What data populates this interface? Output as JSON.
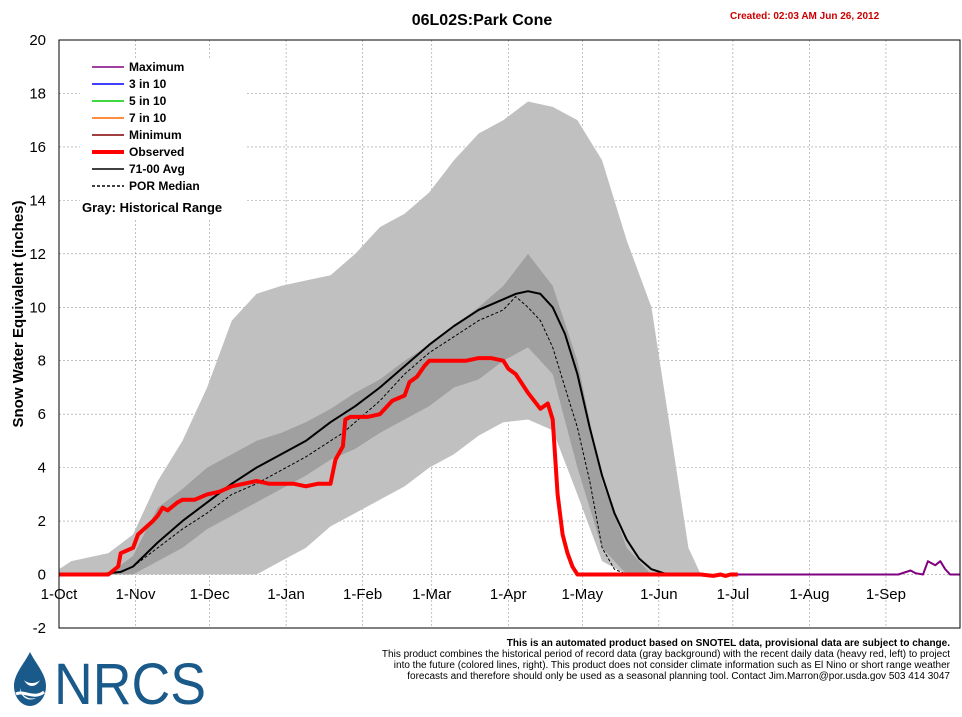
{
  "header": {
    "title": "06L02S:Park Cone",
    "created": "Created: 02:03 AM Jun 26, 2012"
  },
  "legend": {
    "entries": [
      {
        "label": "Maximum",
        "color": "#800080",
        "style": "solid"
      },
      {
        "label": "3 in 10",
        "color": "#0000ff",
        "style": "solid"
      },
      {
        "label": "5 in 10",
        "color": "#00cc00",
        "style": "solid"
      },
      {
        "label": "7 in 10",
        "color": "#ff6600",
        "style": "solid"
      },
      {
        "label": "Minimum",
        "color": "#800000",
        "style": "solid"
      },
      {
        "label": "Observed",
        "color": "#ff0000",
        "style": "thick"
      },
      {
        "label": "71-00 Avg",
        "color": "#000000",
        "style": "solid"
      },
      {
        "label": "POR Median",
        "color": "#000000",
        "style": "dashed"
      }
    ],
    "note": "Gray: Historical Range"
  },
  "footer": {
    "line1": "This is an automated product based on SNOTEL data, provisional data are subject to change.",
    "line2": "This product combines the historical period of record data (gray background) with the recent daily data (heavy red, left) to project",
    "line3": "into the future (colored lines, right). This product does not consider climate information such as El Nino or short range weather",
    "line4": "forecasts and therefore should only be used as a seasonal planning tool. Contact Jim.Marron@por.usda.gov 503 414 3047"
  },
  "logo": {
    "text": "NRCS",
    "color": "#1a5a8a"
  },
  "colors": {
    "outer_range": "#c0c0c0",
    "mid_range": "#a0a0a0",
    "inner_range": "#808080",
    "observed": "#ff0000",
    "average": "#000000",
    "maximum": "#800080"
  },
  "chart_data": {
    "type": "area",
    "xlabel": "",
    "ylabel": "Snow Water Equivalent (inches)",
    "ylim": [
      -2,
      20
    ],
    "yticks": [
      -2,
      0,
      2,
      4,
      6,
      8,
      10,
      12,
      14,
      16,
      18,
      20
    ],
    "xlim": [
      0,
      365
    ],
    "xticks": [
      {
        "label": "1-Oct",
        "day": 0
      },
      {
        "label": "1-Nov",
        "day": 31
      },
      {
        "label": "1-Dec",
        "day": 61
      },
      {
        "label": "1-Jan",
        "day": 92
      },
      {
        "label": "1-Feb",
        "day": 123
      },
      {
        "label": "1-Mar",
        "day": 151
      },
      {
        "label": "1-Apr",
        "day": 182
      },
      {
        "label": "1-May",
        "day": 212
      },
      {
        "label": "1-Jun",
        "day": 243
      },
      {
        "label": "1-Jul",
        "day": 273
      },
      {
        "label": "1-Aug",
        "day": 304
      },
      {
        "label": "1-Sep",
        "day": 335
      }
    ],
    "grid": true,
    "legend_position": "top-left",
    "historical_range_outer": {
      "day": [
        0,
        5,
        10,
        20,
        30,
        40,
        50,
        60,
        70,
        80,
        90,
        100,
        110,
        120,
        130,
        140,
        150,
        160,
        170,
        180,
        190,
        200,
        210,
        220,
        230,
        240,
        250,
        255,
        260,
        365
      ],
      "upper": [
        0.2,
        0.5,
        0.6,
        0.8,
        1.5,
        3.5,
        5.0,
        7.0,
        9.5,
        10.5,
        10.8,
        11.0,
        11.2,
        12.0,
        13.0,
        13.5,
        14.3,
        15.5,
        16.5,
        17.0,
        17.7,
        17.5,
        17.0,
        15.5,
        12.5,
        10.0,
        4.0,
        1.0,
        0,
        0
      ],
      "lower": [
        0,
        0,
        0,
        0,
        0,
        0,
        0,
        0,
        0,
        0,
        0.5,
        1.0,
        1.8,
        2.3,
        2.8,
        3.3,
        4.0,
        4.5,
        5.2,
        5.7,
        5.8,
        5.4,
        3.0,
        0.5,
        0,
        0,
        0,
        0,
        0,
        0
      ]
    },
    "historical_range_mid": {
      "day": [
        20,
        30,
        40,
        50,
        60,
        70,
        80,
        90,
        100,
        110,
        120,
        130,
        140,
        150,
        160,
        170,
        180,
        190,
        200,
        210,
        220,
        230,
        240
      ],
      "upper": [
        0,
        0.7,
        2.5,
        3.2,
        4.0,
        4.5,
        5.0,
        5.3,
        5.7,
        6.2,
        6.8,
        7.3,
        8.0,
        8.6,
        9.3,
        10.0,
        10.8,
        12.0,
        10.8,
        8.0,
        3.5,
        1.0,
        0
      ],
      "lower": [
        0,
        0,
        0.5,
        1.0,
        1.7,
        2.2,
        2.7,
        3.2,
        3.7,
        4.3,
        4.7,
        5.3,
        5.8,
        6.3,
        7.0,
        7.3,
        8.0,
        8.5,
        7.5,
        4.0,
        1.0,
        0,
        0
      ]
    },
    "series": [
      {
        "name": "Observed",
        "day": [
          0,
          12,
          20,
          24,
          25,
          30,
          32,
          38,
          40,
          42,
          44,
          48,
          50,
          55,
          60,
          65,
          70,
          75,
          80,
          85,
          90,
          95,
          100,
          105,
          110,
          112,
          115,
          116,
          118,
          120,
          125,
          130,
          135,
          140,
          142,
          145,
          148,
          150,
          155,
          160,
          165,
          170,
          175,
          180,
          182,
          185,
          190,
          195,
          198,
          200,
          202,
          204,
          206,
          208,
          210,
          212,
          215,
          260,
          265,
          268,
          270,
          272,
          275
        ],
        "value": [
          0,
          0,
          0,
          0.3,
          0.8,
          1.0,
          1.5,
          2.0,
          2.2,
          2.5,
          2.4,
          2.7,
          2.8,
          2.8,
          3.0,
          3.1,
          3.3,
          3.4,
          3.5,
          3.4,
          3.4,
          3.4,
          3.3,
          3.4,
          3.4,
          4.3,
          4.8,
          5.8,
          5.9,
          5.9,
          5.9,
          6.0,
          6.5,
          6.7,
          7.2,
          7.4,
          7.8,
          8.0,
          8.0,
          8.0,
          8.0,
          8.1,
          8.1,
          8.0,
          7.7,
          7.5,
          6.8,
          6.2,
          6.4,
          5.8,
          3.0,
          1.5,
          0.8,
          0.3,
          0,
          0,
          0,
          0,
          -0.05,
          0,
          -0.05,
          0,
          0
        ]
      },
      {
        "name": "71-00 Avg",
        "day": [
          0,
          15,
          20,
          25,
          30,
          40,
          50,
          60,
          70,
          80,
          90,
          100,
          110,
          120,
          130,
          140,
          150,
          160,
          170,
          180,
          185,
          190,
          195,
          200,
          205,
          210,
          215,
          220,
          225,
          230,
          235,
          240,
          245,
          250
        ],
        "value": [
          0,
          0,
          0.05,
          0.1,
          0.3,
          1.2,
          2.0,
          2.7,
          3.4,
          4.0,
          4.5,
          5.0,
          5.7,
          6.3,
          7.0,
          7.8,
          8.6,
          9.3,
          9.9,
          10.3,
          10.5,
          10.6,
          10.5,
          10.0,
          9.0,
          7.5,
          5.5,
          3.7,
          2.3,
          1.3,
          0.6,
          0.2,
          0.05,
          0
        ]
      },
      {
        "name": "POR Median",
        "day": [
          0,
          15,
          20,
          25,
          30,
          40,
          50,
          60,
          70,
          80,
          90,
          100,
          110,
          115,
          120,
          130,
          140,
          150,
          160,
          170,
          180,
          185,
          190,
          195,
          200,
          205,
          210,
          215,
          220,
          225,
          230
        ],
        "value": [
          0,
          0,
          0.05,
          0.1,
          0.3,
          1.0,
          1.7,
          2.3,
          3.0,
          3.4,
          3.9,
          4.4,
          5.0,
          5.3,
          5.7,
          6.5,
          7.5,
          8.3,
          8.9,
          9.5,
          9.9,
          10.4,
          10.0,
          9.5,
          8.5,
          7.0,
          5.5,
          3.5,
          1.0,
          0.2,
          0
        ]
      },
      {
        "name": "Maximum",
        "day": [
          273,
          330,
          340,
          345,
          347,
          350,
          352,
          355,
          357,
          359,
          361,
          365
        ],
        "value": [
          0,
          0,
          0,
          0.15,
          0.05,
          0,
          0.5,
          0.35,
          0.5,
          0.2,
          0,
          0
        ]
      }
    ]
  }
}
